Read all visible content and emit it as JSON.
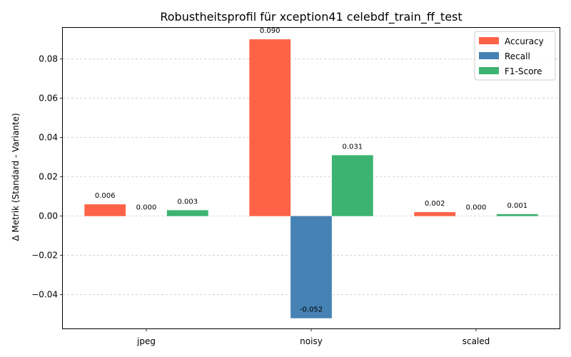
{
  "chart_data": {
    "type": "bar",
    "title": "Robustheitsprofil für xception41 celebdf_train_ff_test",
    "xlabel": "",
    "ylabel": "Δ Metrik (Standard - Variante)",
    "categories": [
      "jpeg",
      "noisy",
      "scaled"
    ],
    "series": [
      {
        "name": "Accuracy",
        "color": "#ff6347",
        "values": [
          0.006,
          0.09,
          0.002
        ],
        "labels": [
          "0.006",
          "0.090",
          "0.002"
        ]
      },
      {
        "name": "Recall",
        "color": "#4682b4",
        "values": [
          0.0,
          -0.052,
          0.0
        ],
        "labels": [
          "0.000",
          "-0.052",
          "0.000"
        ]
      },
      {
        "name": "F1-Score",
        "color": "#3cb371",
        "values": [
          0.003,
          0.031,
          0.001
        ],
        "labels": [
          "0.003",
          "0.031",
          "0.001"
        ]
      }
    ],
    "ylim": [
      -0.0572,
      0.0962
    ],
    "yticks": [
      -0.04,
      -0.02,
      0.0,
      0.02,
      0.04,
      0.06,
      0.08
    ],
    "ytick_labels": [
      "−0.04",
      "−0.02",
      "0.00",
      "0.02",
      "0.04",
      "0.06",
      "0.08"
    ],
    "grid": "y-dashed",
    "legend_position": "top-right"
  }
}
